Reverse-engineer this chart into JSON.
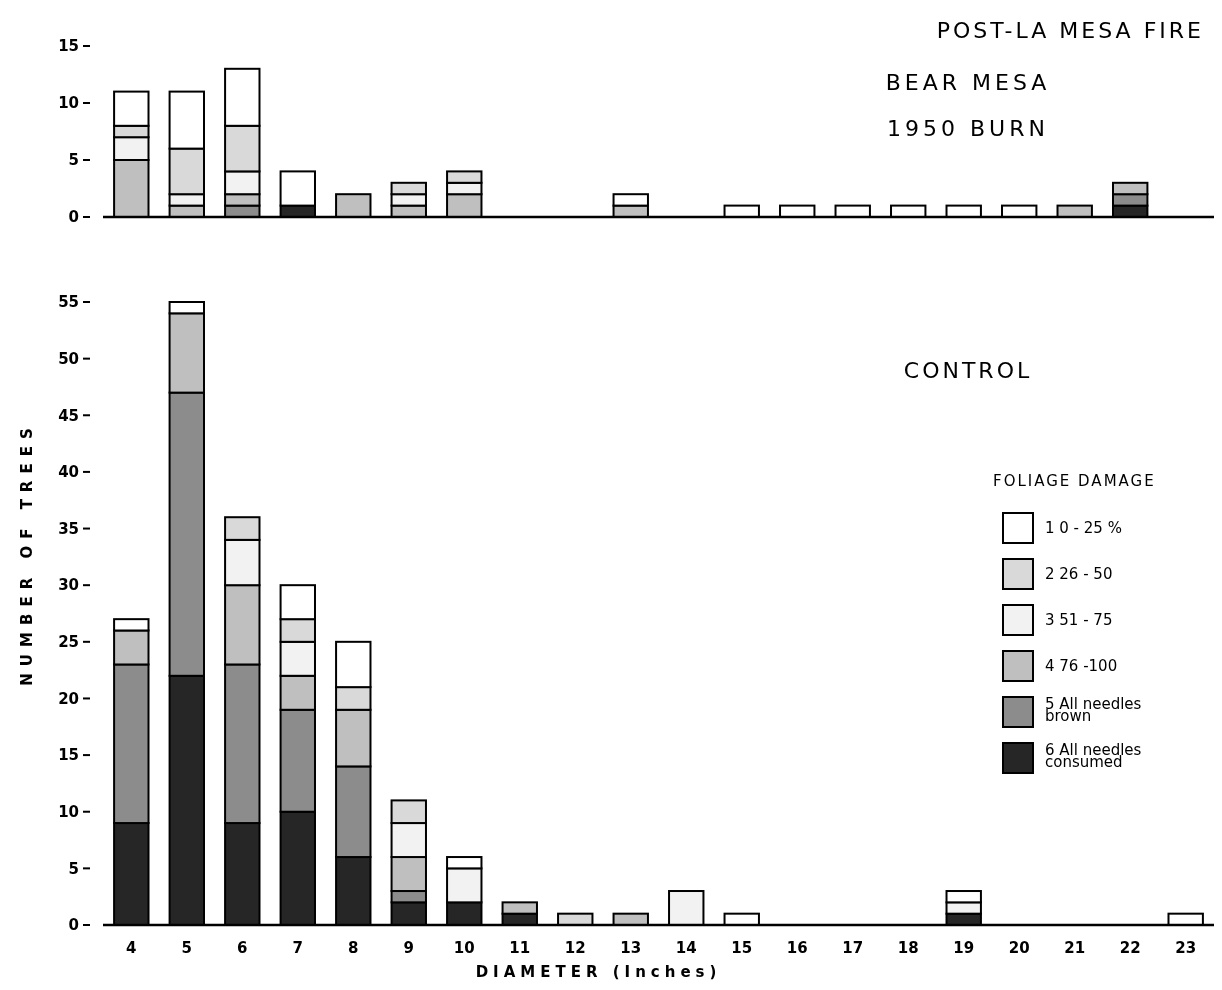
{
  "chart_data": [
    {
      "type": "bar",
      "title": "POST-LA MESA FIRE",
      "subtitle": "BEAR MESA 1950 BURN",
      "stacked": true,
      "tick_labels": "y",
      "categories": [
        null,
        null,
        null,
        null,
        null,
        null,
        null,
        null,
        null,
        null,
        null,
        null,
        null,
        null,
        null,
        null,
        null,
        null,
        null,
        null
      ],
      "ylim": [
        0,
        15
      ],
      "yticks": [
        0,
        5,
        10,
        15
      ],
      "series": [
        {
          "color": "#262626",
          "values": [
            0,
            0,
            0,
            1,
            0,
            0,
            0,
            0,
            0,
            0,
            0,
            0,
            0,
            0,
            0,
            0,
            0,
            0,
            1,
            0
          ]
        },
        {
          "color": "#8c8c8c",
          "values": [
            0,
            0,
            1,
            0,
            0,
            0,
            0,
            0,
            0,
            0,
            0,
            0,
            0,
            0,
            0,
            0,
            0,
            0,
            1,
            0
          ]
        },
        {
          "color": "#bfbfbf",
          "values": [
            5,
            1,
            1,
            0,
            2,
            1,
            2,
            0,
            0,
            1,
            0,
            0,
            0,
            0,
            0,
            0,
            0,
            1,
            1,
            0
          ]
        },
        {
          "color": "#f2f2f2",
          "values": [
            2,
            1,
            2,
            0,
            0,
            1,
            1,
            0,
            0,
            0,
            0,
            0,
            0,
            0,
            0,
            0,
            0,
            0,
            0,
            0
          ]
        },
        {
          "color": "#d9d9d9",
          "values": [
            1,
            4,
            4,
            0,
            0,
            1,
            1,
            0,
            0,
            0,
            0,
            0,
            0,
            0,
            0,
            0,
            0,
            0,
            0,
            0
          ]
        },
        {
          "color": "#ffffff",
          "values": [
            3,
            5,
            5,
            3,
            0,
            0,
            0,
            0,
            0,
            1,
            0,
            1,
            1,
            1,
            1,
            1,
            1,
            0,
            0,
            0
          ]
        }
      ]
    },
    {
      "type": "bar",
      "title": "CONTROL",
      "stacked": true,
      "xlabel": "DIAMETER (Inches)",
      "ylabel": "NUMBER OF TREES",
      "legend": "right",
      "legend_title": "FOLIAGE DAMAGE",
      "categories": [
        "4",
        "5",
        "6",
        "7",
        "8",
        "9",
        "10",
        "11",
        "12",
        "13",
        "14",
        "15",
        "16",
        "17",
        "18",
        "19",
        "20",
        "21",
        "22",
        "23"
      ],
      "ylim": [
        0,
        55
      ],
      "yticks": [
        0,
        5,
        10,
        15,
        20,
        25,
        30,
        35,
        40,
        45,
        50,
        55
      ],
      "series": [
        {
          "name": "6 All needles consumed",
          "color": "#262626",
          "values": [
            9,
            22,
            9,
            10,
            6,
            2,
            2,
            1,
            0,
            0,
            0,
            0,
            0,
            0,
            0,
            1,
            0,
            0,
            0,
            0
          ]
        },
        {
          "name": "5 All needles brown",
          "color": "#8c8c8c",
          "values": [
            14,
            25,
            14,
            9,
            8,
            1,
            0,
            0,
            0,
            0,
            0,
            0,
            0,
            0,
            0,
            0,
            0,
            0,
            0,
            0
          ]
        },
        {
          "name": "4 76 -100",
          "color": "#bfbfbf",
          "values": [
            3,
            7,
            7,
            3,
            5,
            3,
            0,
            1,
            0,
            1,
            0,
            0,
            0,
            0,
            0,
            0,
            0,
            0,
            0,
            0
          ]
        },
        {
          "name": "3 51 - 75",
          "color": "#f2f2f2",
          "values": [
            0,
            0,
            4,
            3,
            0,
            3,
            3,
            0,
            0,
            0,
            3,
            0,
            0,
            0,
            0,
            1,
            0,
            0,
            0,
            0
          ]
        },
        {
          "name": "2 26 - 50",
          "color": "#d9d9d9",
          "values": [
            0,
            0,
            2,
            2,
            2,
            2,
            0,
            0,
            1,
            0,
            0,
            0,
            0,
            0,
            0,
            0,
            0,
            0,
            0,
            0
          ]
        },
        {
          "name": "1 0 - 25 %",
          "color": "#ffffff",
          "values": [
            1,
            1,
            0,
            3,
            4,
            0,
            1,
            0,
            0,
            0,
            0,
            1,
            0,
            0,
            0,
            1,
            0,
            0,
            0,
            1
          ]
        }
      ]
    }
  ]
}
